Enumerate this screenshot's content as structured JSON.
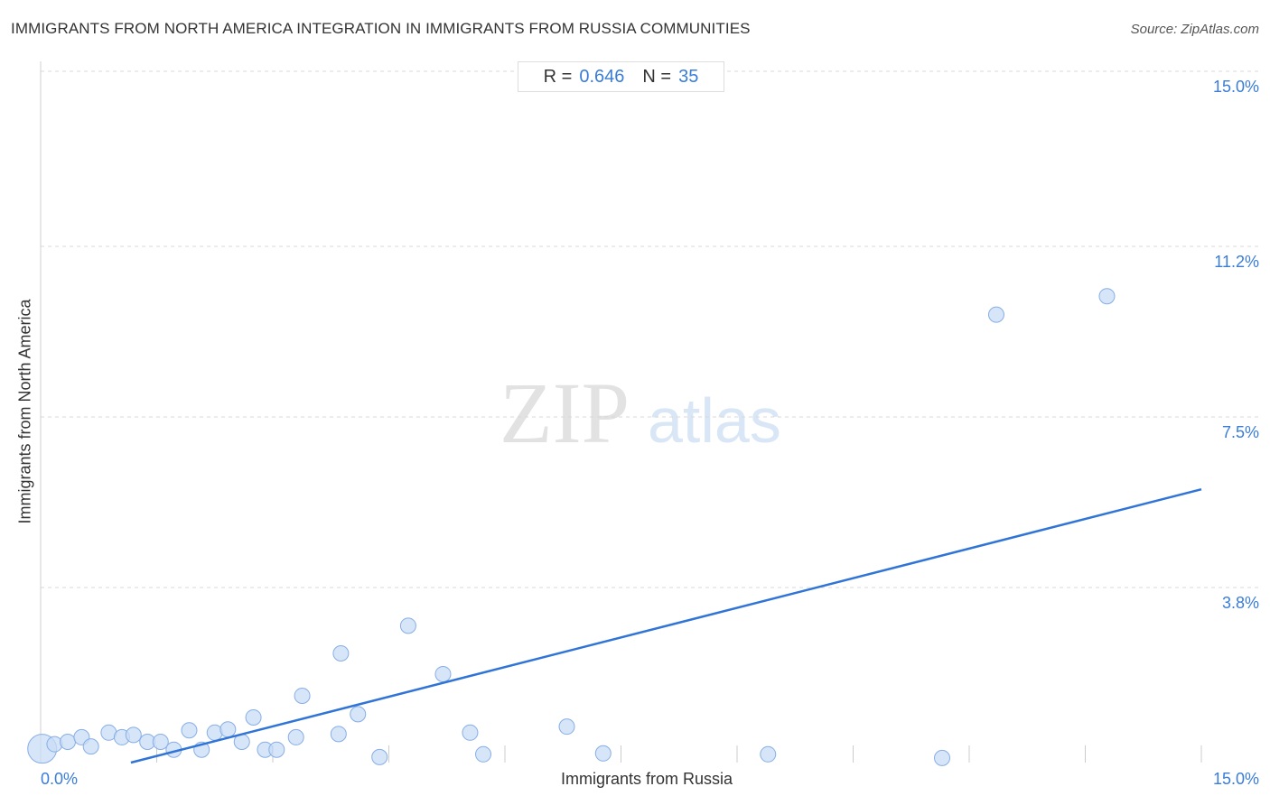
{
  "header": {
    "title": "IMMIGRANTS FROM NORTH AMERICA INTEGRATION IN IMMIGRANTS FROM RUSSIA COMMUNITIES",
    "source_label": "Source:",
    "source_value": "ZipAtlas.com"
  },
  "stats": {
    "r_label": "R =",
    "r_value": "0.646",
    "n_label": "N =",
    "n_value": "35"
  },
  "watermark": {
    "zip": "ZIP",
    "atlas": "atlas"
  },
  "colors": {
    "point_fill": "#c9dcf6",
    "point_stroke": "#86aee6",
    "trend_line": "#2f74d6",
    "tick_text": "#3a7dd8",
    "grid": "#d8d8d8"
  },
  "chart_data": {
    "type": "scatter",
    "title": "IMMIGRANTS FROM NORTH AMERICA INTEGRATION IN IMMIGRANTS FROM RUSSIA COMMUNITIES",
    "xlabel": "Immigrants from Russia",
    "ylabel": "Immigrants from North America",
    "xlim": [
      0,
      15
    ],
    "ylim": [
      0,
      15
    ],
    "x_tick_labels": [
      "0.0%",
      "15.0%"
    ],
    "y_ticks": [
      {
        "value": 15.0,
        "label": "15.0%"
      },
      {
        "value": 11.2,
        "label": "11.2%"
      },
      {
        "value": 7.5,
        "label": "7.5%"
      },
      {
        "value": 3.8,
        "label": "3.8%"
      }
    ],
    "grid": true,
    "trend_line": {
      "x": [
        0.0,
        15.0
      ],
      "y": [
        -0.5,
        5.93
      ]
    },
    "points": [
      {
        "x": 0.02,
        "y": 0.3,
        "size": "large"
      },
      {
        "x": 0.18,
        "y": 0.4
      },
      {
        "x": 0.35,
        "y": 0.45
      },
      {
        "x": 0.53,
        "y": 0.55
      },
      {
        "x": 0.65,
        "y": 0.35
      },
      {
        "x": 0.88,
        "y": 0.65
      },
      {
        "x": 1.05,
        "y": 0.55
      },
      {
        "x": 1.2,
        "y": 0.6
      },
      {
        "x": 1.38,
        "y": 0.45
      },
      {
        "x": 1.55,
        "y": 0.45
      },
      {
        "x": 1.72,
        "y": 0.28
      },
      {
        "x": 1.92,
        "y": 0.7
      },
      {
        "x": 2.08,
        "y": 0.28
      },
      {
        "x": 2.25,
        "y": 0.65
      },
      {
        "x": 2.42,
        "y": 0.72
      },
      {
        "x": 2.6,
        "y": 0.45
      },
      {
        "x": 2.75,
        "y": 0.98
      },
      {
        "x": 2.9,
        "y": 0.28
      },
      {
        "x": 3.05,
        "y": 0.28
      },
      {
        "x": 3.3,
        "y": 0.55
      },
      {
        "x": 3.38,
        "y": 1.45
      },
      {
        "x": 3.85,
        "y": 0.62
      },
      {
        "x": 3.88,
        "y": 2.37
      },
      {
        "x": 4.1,
        "y": 1.05
      },
      {
        "x": 4.38,
        "y": 0.12
      },
      {
        "x": 4.75,
        "y": 2.97
      },
      {
        "x": 5.2,
        "y": 1.92
      },
      {
        "x": 5.55,
        "y": 0.65
      },
      {
        "x": 5.72,
        "y": 0.18
      },
      {
        "x": 6.8,
        "y": 0.78
      },
      {
        "x": 7.27,
        "y": 0.2
      },
      {
        "x": 9.4,
        "y": 0.18
      },
      {
        "x": 11.65,
        "y": 0.1
      },
      {
        "x": 12.35,
        "y": 9.72
      },
      {
        "x": 13.78,
        "y": 10.12
      }
    ]
  }
}
